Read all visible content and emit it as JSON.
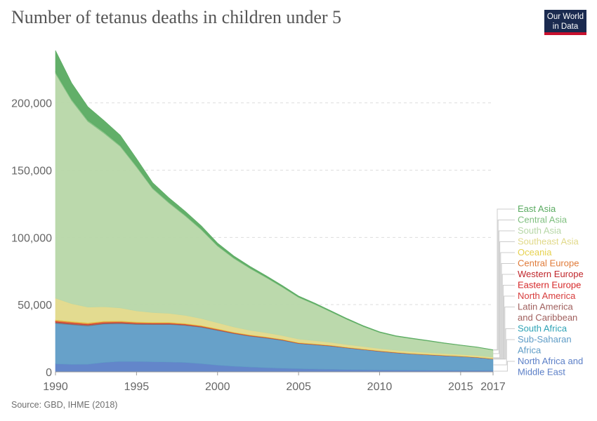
{
  "title": "Number of tetanus deaths in children under 5",
  "logo": {
    "line1": "Our World",
    "line2": "in Data"
  },
  "source": "Source: GBD, IHME (2018)",
  "colors": {
    "logo_bg": "#1a2a4f",
    "logo_accent": "#c8102e",
    "grid": "#dddddd",
    "tick_text": "#666666"
  },
  "chart_data": {
    "type": "area",
    "stacked": true,
    "title": "Number of tetanus deaths in children under 5",
    "xlabel": "",
    "ylabel": "",
    "x_ticks": [
      "1990",
      "1995",
      "2000",
      "2005",
      "2010",
      "2015",
      "2017"
    ],
    "y_ticks": [
      "0",
      "50,000",
      "100,000",
      "150,000",
      "200,000"
    ],
    "xlim": [
      1990,
      2017
    ],
    "ylim": [
      0,
      240000
    ],
    "grid": "horizontal dashed",
    "legend_placement": "right labels",
    "x": [
      1990,
      1991,
      1992,
      1993,
      1994,
      1995,
      1996,
      1997,
      1998,
      1999,
      2000,
      2001,
      2002,
      2003,
      2004,
      2005,
      2006,
      2007,
      2008,
      2009,
      2010,
      2011,
      2012,
      2013,
      2014,
      2015,
      2016,
      2017
    ],
    "series": [
      {
        "name": "North Africa and Middle East",
        "label_lines": [
          "North Africa and",
          "Middle East"
        ],
        "color": "#5b7fc7",
        "values": [
          6000,
          5600,
          5700,
          7000,
          7800,
          7700,
          7500,
          7300,
          7000,
          6100,
          5000,
          4200,
          3600,
          3100,
          2700,
          2400,
          2100,
          1900,
          1700,
          1550,
          1400,
          1300,
          1250,
          1200,
          1150,
          1100,
          1050,
          1000
        ]
      },
      {
        "name": "Sub-Saharan Africa",
        "label_lines": [
          "Sub-Saharan",
          "Africa"
        ],
        "color": "#5f9cc6",
        "values": [
          30000,
          29400,
          28400,
          28500,
          28000,
          27500,
          27600,
          27900,
          27500,
          27000,
          25800,
          24200,
          22900,
          22000,
          20700,
          18600,
          18000,
          17200,
          16000,
          14900,
          13800,
          12800,
          12000,
          11400,
          10800,
          10300,
          9600,
          8500
        ]
      },
      {
        "name": "South Africa",
        "label_lines": [
          "South Africa"
        ],
        "color": "#2fa3b5",
        "values": [
          200,
          190,
          180,
          170,
          160,
          150,
          140,
          130,
          120,
          110,
          100,
          90,
          85,
          80,
          75,
          70,
          65,
          60,
          55,
          50,
          45,
          42,
          40,
          38,
          36,
          34,
          32,
          30
        ]
      },
      {
        "name": "Latin America and Caribbean",
        "label_lines": [
          "Latin America",
          "and Caribbean"
        ],
        "color": "#a0605e",
        "values": [
          900,
          850,
          800,
          750,
          700,
          650,
          600,
          550,
          500,
          450,
          400,
          360,
          330,
          300,
          270,
          250,
          230,
          210,
          190,
          170,
          160,
          150,
          140,
          130,
          120,
          110,
          100,
          95
        ]
      },
      {
        "name": "North America",
        "label_lines": [
          "North America"
        ],
        "color": "#d73c3c",
        "values": [
          10,
          10,
          10,
          10,
          10,
          10,
          10,
          10,
          10,
          10,
          10,
          10,
          10,
          10,
          10,
          10,
          10,
          10,
          10,
          10,
          10,
          10,
          10,
          10,
          10,
          10,
          10,
          10
        ]
      },
      {
        "name": "Eastern Europe",
        "label_lines": [
          "Eastern Europe"
        ],
        "color": "#d62728",
        "values": [
          300,
          280,
          260,
          240,
          220,
          200,
          180,
          160,
          140,
          120,
          100,
          90,
          80,
          70,
          60,
          55,
          50,
          45,
          40,
          35,
          30,
          28,
          26,
          24,
          22,
          20,
          18,
          16
        ]
      },
      {
        "name": "Western Europe",
        "label_lines": [
          "Western Europe"
        ],
        "color": "#c0262b",
        "values": [
          20,
          20,
          18,
          18,
          16,
          16,
          14,
          14,
          12,
          12,
          10,
          10,
          10,
          10,
          10,
          10,
          10,
          10,
          10,
          10,
          10,
          10,
          10,
          10,
          10,
          10,
          10,
          10
        ]
      },
      {
        "name": "Central Europe",
        "label_lines": [
          "Central Europe"
        ],
        "color": "#e07b39",
        "values": [
          900,
          850,
          800,
          750,
          700,
          650,
          600,
          550,
          500,
          450,
          400,
          360,
          320,
          290,
          260,
          240,
          220,
          200,
          180,
          160,
          150,
          140,
          130,
          120,
          110,
          100,
          95,
          90
        ]
      },
      {
        "name": "Oceania",
        "label_lines": [
          "Oceania"
        ],
        "color": "#e6d14e",
        "values": [
          500,
          500,
          480,
          470,
          460,
          450,
          440,
          430,
          420,
          410,
          400,
          390,
          380,
          370,
          360,
          350,
          340,
          330,
          320,
          310,
          300,
          290,
          280,
          270,
          260,
          250,
          240,
          230
        ]
      },
      {
        "name": "Southeast Asia",
        "label_lines": [
          "Southeast Asia"
        ],
        "color": "#e1d98a",
        "values": [
          16000,
          13000,
          11500,
          10500,
          9500,
          8000,
          7000,
          6500,
          5800,
          5000,
          4300,
          3700,
          3200,
          2900,
          2600,
          2400,
          2200,
          2000,
          1800,
          1650,
          1500,
          1400,
          1300,
          1200,
          1150,
          1100,
          1050,
          1000
        ]
      },
      {
        "name": "South Asia",
        "label_lines": [
          "South Asia"
        ],
        "color": "#b7d7a8",
        "values": [
          167000,
          151000,
          138000,
          129000,
          120000,
          107000,
          92000,
          82000,
          74000,
          66000,
          57000,
          51000,
          46000,
          41000,
          35900,
          31000,
          27000,
          22600,
          18600,
          14800,
          11800,
          10200,
          9400,
          8500,
          7500,
          6600,
          6000,
          5200
        ]
      },
      {
        "name": "Central Asia",
        "label_lines": [
          "Central Asia"
        ],
        "color": "#7fbf7f",
        "values": [
          1200,
          1100,
          1000,
          950,
          900,
          850,
          800,
          750,
          700,
          650,
          600,
          550,
          500,
          470,
          440,
          410,
          380,
          350,
          320,
          300,
          280,
          260,
          240,
          220,
          200,
          190,
          180,
          170
        ]
      },
      {
        "name": "East Asia",
        "label_lines": [
          "East Asia"
        ],
        "color": "#5aab61",
        "values": [
          16000,
          12000,
          10000,
          8500,
          7500,
          5500,
          3800,
          3200,
          2800,
          2300,
          1700,
          1300,
          1100,
          950,
          820,
          700,
          600,
          520,
          450,
          390,
          340,
          300,
          270,
          240,
          210,
          190,
          170,
          150
        ]
      }
    ]
  }
}
